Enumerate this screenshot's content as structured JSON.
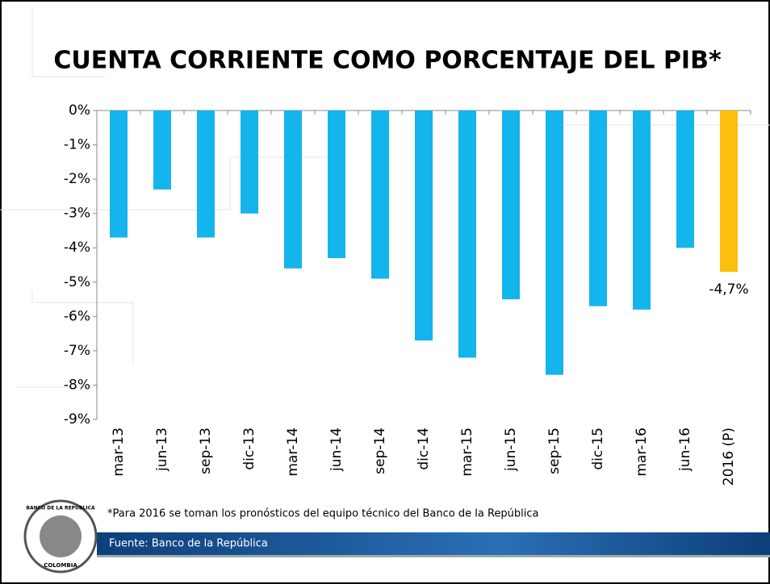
{
  "chart_data": {
    "type": "bar",
    "title": "CUENTA CORRIENTE COMO PORCENTAJE DEL PIB*",
    "categories": [
      "mar-13",
      "jun-13",
      "sep-13",
      "dic-13",
      "mar-14",
      "jun-14",
      "sep-14",
      "dic-14",
      "mar-15",
      "jun-15",
      "sep-15",
      "dic-15",
      "mar-16",
      "jun-16",
      "2016 (P)"
    ],
    "values": [
      -3.7,
      -2.3,
      -3.7,
      -3.0,
      -4.6,
      -4.3,
      -4.9,
      -6.7,
      -7.2,
      -5.5,
      -7.7,
      -5.7,
      -5.8,
      -4.0,
      -4.7
    ],
    "value_labels": [
      null,
      null,
      null,
      null,
      null,
      null,
      null,
      null,
      null,
      null,
      null,
      null,
      null,
      null,
      "-4,7%"
    ],
    "colors": [
      "#14b4ec",
      "#14b4ec",
      "#14b4ec",
      "#14b4ec",
      "#14b4ec",
      "#14b4ec",
      "#14b4ec",
      "#14b4ec",
      "#14b4ec",
      "#14b4ec",
      "#14b4ec",
      "#14b4ec",
      "#14b4ec",
      "#14b4ec",
      "#fdbf0f"
    ],
    "ylim": [
      -9,
      0
    ],
    "yticks": [
      {
        "value": 0,
        "label": "0%"
      },
      {
        "value": -1,
        "label": "-1%"
      },
      {
        "value": -2,
        "label": "-2%"
      },
      {
        "value": -3,
        "label": "-3%"
      },
      {
        "value": -4,
        "label": "-4%"
      },
      {
        "value": -5,
        "label": "-5%"
      },
      {
        "value": -6,
        "label": "-6%"
      },
      {
        "value": -7,
        "label": "-7%"
      },
      {
        "value": -8,
        "label": "-8%"
      },
      {
        "value": -9,
        "label": "-9%"
      }
    ],
    "footnote": "*Para 2016 se toman los pronósticos del equipo técnico del Banco de la República",
    "source": "Fuente: Banco de la República",
    "logo_top": "BANCO DE LA REPÚBLICA",
    "logo_bottom": "COLOMBIA"
  }
}
